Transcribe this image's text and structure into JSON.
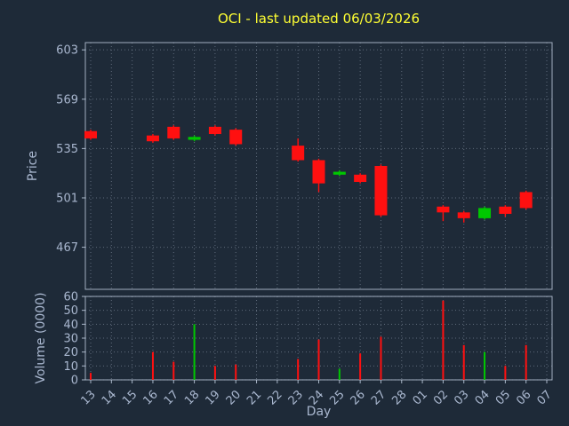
{
  "title": "OCI - last updated 06/03/2026",
  "colors": {
    "background": "#1e2a38",
    "title": "#ffff33",
    "axis_label": "#a9b7cf",
    "tick_label": "#a9b7cf",
    "grid": "#b9c6d8",
    "up": "#00c800",
    "down": "#ff1010"
  },
  "chart_data": [
    {
      "type": "candlestick",
      "title": "OCI - last updated 06/03/2026",
      "xlabel": "Day",
      "ylabel": "Price",
      "ylim": [
        438,
        608
      ],
      "yticks": [
        467,
        501,
        535,
        569,
        603
      ],
      "grid": true,
      "legend": "none",
      "categories": [
        "13",
        "14",
        "15",
        "16",
        "17",
        "18",
        "19",
        "20",
        "21",
        "22",
        "23",
        "24",
        "25",
        "26",
        "27",
        "28",
        "01",
        "02",
        "03",
        "04",
        "05",
        "06",
        "07"
      ],
      "series": [
        {
          "name": "OHLC",
          "candles": [
            {
              "open": 547,
              "high": 548,
              "low": 541,
              "close": 542
            },
            null,
            null,
            {
              "open": 544,
              "high": 545,
              "low": 539,
              "close": 540
            },
            {
              "open": 550,
              "high": 551,
              "low": 541,
              "close": 542
            },
            {
              "open": 541,
              "high": 544,
              "low": 540,
              "close": 543
            },
            {
              "open": 550,
              "high": 551,
              "low": 544,
              "close": 545
            },
            {
              "open": 548,
              "high": 549,
              "low": 537,
              "close": 538
            },
            null,
            null,
            {
              "open": 537,
              "high": 542,
              "low": 526,
              "close": 527
            },
            {
              "open": 527,
              "high": 528,
              "low": 505,
              "close": 511
            },
            {
              "open": 517,
              "high": 520,
              "low": 516,
              "close": 519
            },
            {
              "open": 517,
              "high": 518,
              "low": 511,
              "close": 512
            },
            {
              "open": 523,
              "high": 524,
              "low": 488,
              "close": 489
            },
            null,
            null,
            {
              "open": 495,
              "high": 496,
              "low": 485,
              "close": 491
            },
            {
              "open": 491,
              "high": 492,
              "low": 484,
              "close": 487
            },
            {
              "open": 487,
              "high": 495,
              "low": 486,
              "close": 494
            },
            {
              "open": 495,
              "high": 496,
              "low": 488,
              "close": 490
            },
            {
              "open": 505,
              "high": 506,
              "low": 493,
              "close": 494
            },
            null
          ]
        }
      ]
    },
    {
      "type": "bar",
      "ylabel": "Volume (0000)",
      "ylim": [
        0,
        60
      ],
      "yticks": [
        0,
        10,
        20,
        30,
        40,
        50,
        60
      ],
      "grid": true,
      "categories": [
        "13",
        "14",
        "15",
        "16",
        "17",
        "18",
        "19",
        "20",
        "21",
        "22",
        "23",
        "24",
        "25",
        "26",
        "27",
        "28",
        "01",
        "02",
        "03",
        "04",
        "05",
        "06",
        "07"
      ],
      "values": [
        5,
        0,
        0,
        20,
        13,
        40,
        10,
        11,
        0,
        0,
        15,
        29,
        8,
        19,
        31,
        0,
        0,
        57,
        25,
        20,
        10,
        25,
        0
      ]
    }
  ]
}
